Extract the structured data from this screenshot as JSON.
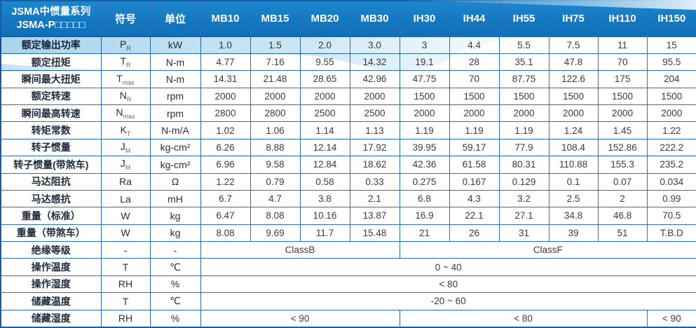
{
  "table": {
    "title_line1": "JSMA中惯量系列",
    "title_line2": "JSMA-P□□□□□",
    "symbol_header": "符号",
    "unit_header": "单位",
    "models": [
      "MB10",
      "MB15",
      "MB20",
      "MB30",
      "IH30",
      "IH44",
      "IH55",
      "IH75",
      "IH110",
      "IH150"
    ],
    "rows": [
      {
        "label": "额定输出功率",
        "symbol": "P",
        "sub": "R",
        "unit": "kW",
        "values": [
          "1.0",
          "1.5",
          "2.0",
          "3.0",
          "3",
          "4.4",
          "5.5",
          "7.5",
          "11",
          "15"
        ]
      },
      {
        "label": "额定扭矩",
        "symbol": "T",
        "sub": "R",
        "unit": "N-m",
        "values": [
          "4.77",
          "7.16",
          "9.55",
          "14.32",
          "19.1",
          "28",
          "35.1",
          "47.8",
          "70",
          "95.5"
        ]
      },
      {
        "label": "瞬间最大扭矩",
        "symbol": "T",
        "sub": "max",
        "unit": "N-m",
        "values": [
          "14.31",
          "21.48",
          "28.65",
          "42.96",
          "47.75",
          "70",
          "87.75",
          "122.6",
          "175",
          "204"
        ]
      },
      {
        "label": "额定转速",
        "symbol": "N",
        "sub": "R",
        "unit": "rpm",
        "values": [
          "2000",
          "2000",
          "2000",
          "2000",
          "1500",
          "1500",
          "1500",
          "1500",
          "1500",
          "1500"
        ]
      },
      {
        "label": "瞬间最高转速",
        "symbol": "N",
        "sub": "max",
        "unit": "rpm",
        "values": [
          "2800",
          "2800",
          "2500",
          "2500",
          "2000",
          "2000",
          "2000",
          "2000",
          "2000",
          "2000"
        ]
      },
      {
        "label": "转矩常数",
        "symbol": "K",
        "sub": "T",
        "unit": "N-m/A",
        "values": [
          "1.02",
          "1.06",
          "1.14",
          "1.13",
          "1.19",
          "1.19",
          "1.19",
          "1.24",
          "1.45",
          "1.22"
        ]
      },
      {
        "label": "转子惯量",
        "symbol": "J",
        "sub": "M",
        "unit": "kg-cm²",
        "values": [
          "6.26",
          "8.88",
          "12.14",
          "17.92",
          "39.95",
          "59.17",
          "77.9",
          "108.4",
          "152.86",
          "222.2"
        ]
      },
      {
        "label": "转子惯量(带煞车)",
        "symbol": "J",
        "sub": "M",
        "unit": "kg-cm²",
        "values": [
          "6.96",
          "9.58",
          "12.84",
          "18.62",
          "42.36",
          "61.58",
          "80.31",
          "110.88",
          "155.3",
          "235.2"
        ]
      },
      {
        "label": "马达阻抗",
        "symbol": "Ra",
        "sub": "",
        "unit": "Ω",
        "values": [
          "1.22",
          "0.79",
          "0.58",
          "0.33",
          "0.275",
          "0.167",
          "0.129",
          "0.1",
          "0.07",
          "0.034"
        ]
      },
      {
        "label": "马达感抗",
        "symbol": "La",
        "sub": "",
        "unit": "mH",
        "values": [
          "6.7",
          "4.7",
          "3.8",
          "2.1",
          "6.8",
          "4.3",
          "3.2",
          "2.5",
          "2",
          "0.99"
        ]
      },
      {
        "label": "重量（标准）",
        "symbol": "W",
        "sub": "",
        "unit": "kg",
        "values": [
          "6.47",
          "8.08",
          "10.16",
          "13.87",
          "16.9",
          "22.1",
          "27.1",
          "34.8",
          "46.8",
          "70.5"
        ]
      },
      {
        "label": "重量（带煞车）",
        "symbol": "W",
        "sub": "",
        "unit": "kg",
        "values": [
          "8.08",
          "9.69",
          "11.7",
          "15.48",
          "21",
          "26",
          "31",
          "39",
          "51",
          "T.B.D"
        ]
      }
    ],
    "merged_rows": [
      {
        "label": "绝缘等级",
        "symbol": "-",
        "sub": "",
        "unit": "-",
        "cells": [
          {
            "text": "ClassB",
            "span": 4
          },
          {
            "text": "ClassF",
            "span": 6
          }
        ]
      },
      {
        "label": "操作温度",
        "symbol": "T",
        "sub": "",
        "unit": "℃",
        "cells": [
          {
            "text": "0 ~ 40",
            "span": 10
          }
        ]
      },
      {
        "label": "操作湿度",
        "symbol": "RH",
        "sub": "",
        "unit": "%",
        "cells": [
          {
            "text": "< 80",
            "span": 10
          }
        ]
      },
      {
        "label": "储藏温度",
        "symbol": "T",
        "sub": "",
        "unit": "℃",
        "cells": [
          {
            "text": "-20 ~ 60",
            "span": 10
          }
        ]
      },
      {
        "label": "储藏湿度",
        "symbol": "RH",
        "sub": "",
        "unit": "%",
        "cells": [
          {
            "text": "< 90",
            "span": 4
          },
          {
            "text": "< 80",
            "span": 5
          },
          {
            "text": "< 90",
            "span": 1
          }
        ]
      }
    ]
  },
  "colors": {
    "header_blue": "#1478c0",
    "header_blue_light": "#1e86cf",
    "grid_border": "#2a72b5",
    "outer_border": "#1b5ea6",
    "header_divider": "#0a5a9c",
    "swoosh_light_blue": "#9ccfec",
    "swoosh_pale_blue": "#d9eefa",
    "label_text": "#1d2b3a",
    "value_text": "#3c3c3c",
    "header_text": "#ffffff"
  }
}
